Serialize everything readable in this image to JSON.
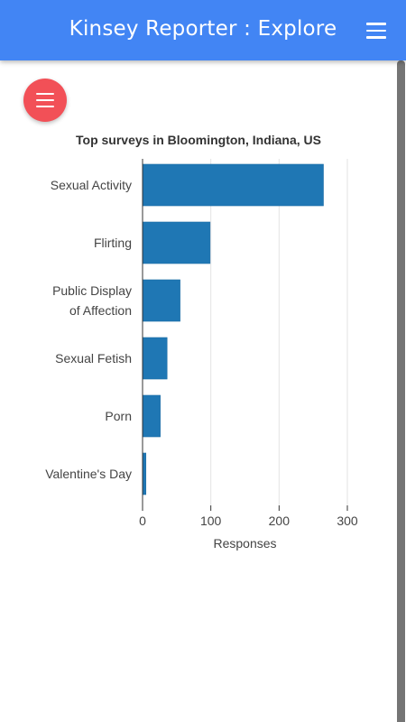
{
  "app_bar": {
    "title": "Kinsey Reporter : Explore",
    "menu_icon": "menu-icon",
    "background": "#4285f4"
  },
  "fab": {
    "icon": "menu-icon",
    "color": "#f25057"
  },
  "chart_data": {
    "type": "bar",
    "orientation": "horizontal",
    "title": "Top surveys in Bloomington, Indiana, US",
    "categories": [
      [
        "Sexual Activity"
      ],
      [
        "Flirting"
      ],
      [
        "Public Display",
        "of Affection"
      ],
      [
        "Sexual Fetish"
      ],
      [
        "Porn"
      ],
      [
        "Valentine's Day"
      ]
    ],
    "values": [
      265,
      99,
      55,
      36,
      26,
      5
    ],
    "xlabel": "Responses",
    "ylabel": "",
    "xlim": [
      0,
      300
    ],
    "xticks": [
      "0",
      "100",
      "200",
      "300"
    ],
    "grid": true,
    "bar_color": "#1f77b4"
  }
}
